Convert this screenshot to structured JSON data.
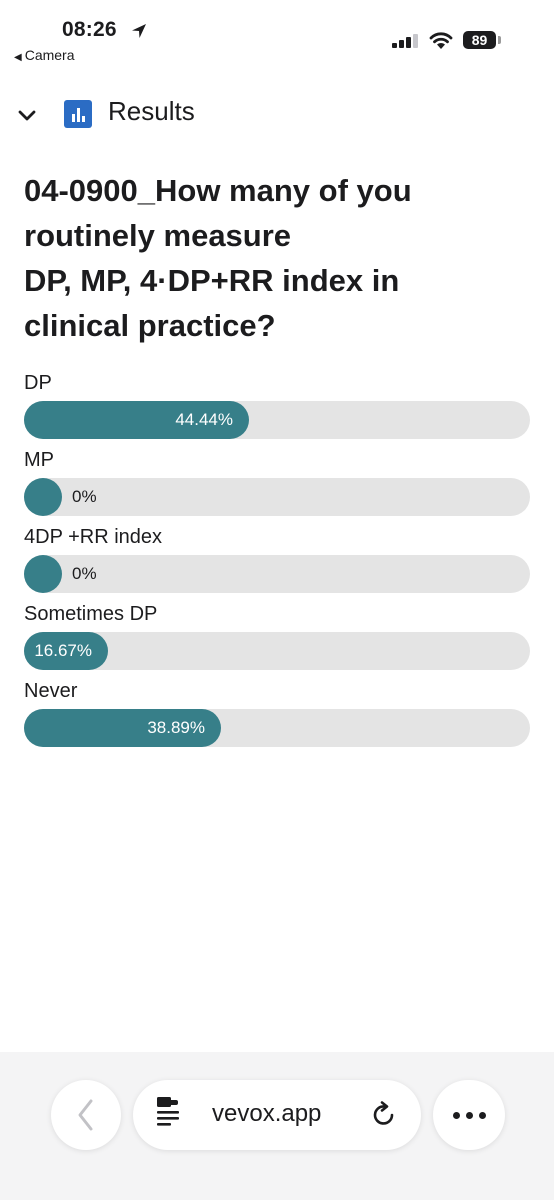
{
  "status_bar": {
    "time": "08:26",
    "back_app": "Camera",
    "battery": "89"
  },
  "header": {
    "title": "Results"
  },
  "question": {
    "lines": [
      "04-0900_How many of you",
      "routinely measure",
      "DP, MP, 4·DP+RR index in",
      "clinical practice?"
    ]
  },
  "options": [
    {
      "label": "DP",
      "percent_text": "44.44%",
      "value": 44.44
    },
    {
      "label": "MP",
      "percent_text": "0%",
      "value": 0
    },
    {
      "label": "4DP +RR index",
      "percent_text": "0%",
      "value": 0
    },
    {
      "label": "Sometimes DP",
      "percent_text": "16.67%",
      "value": 16.67
    },
    {
      "label": "Never",
      "percent_text": "38.89%",
      "value": 38.89
    }
  ],
  "browser": {
    "url": "vevox.app"
  },
  "colors": {
    "bar_fill": "#377f89",
    "bar_track": "#e4e4e4",
    "results_icon": "#2b6cc4"
  },
  "icons": [
    "location-arrow-icon",
    "signal-icon",
    "wifi-icon",
    "battery-icon",
    "chevron-down-icon",
    "bar-chart-icon",
    "back-arrow-icon",
    "reader-icon",
    "reload-icon",
    "more-icon"
  ]
}
